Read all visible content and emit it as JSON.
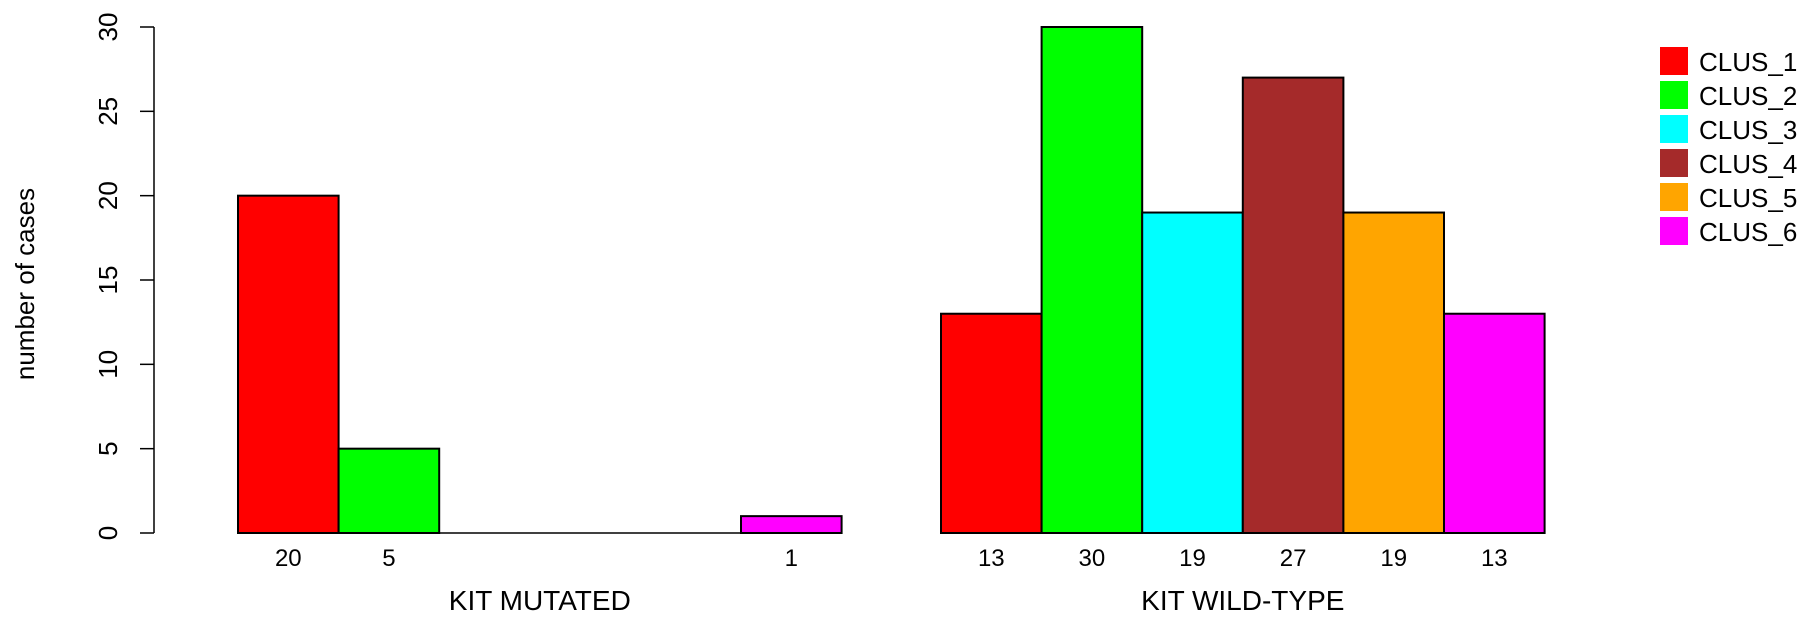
{
  "chart_data": {
    "type": "bar",
    "ylabel": "number of cases",
    "ylim": [
      0,
      30
    ],
    "yticks": [
      0,
      5,
      10,
      15,
      20,
      25,
      30
    ],
    "grid": false,
    "legend_position": "top-right",
    "groups": [
      {
        "label": "KIT MUTATED"
      },
      {
        "label": "KIT WILD-TYPE"
      }
    ],
    "series": [
      {
        "name": "CLUS_1",
        "color": "#ff0000",
        "values": [
          20,
          13
        ]
      },
      {
        "name": "CLUS_2",
        "color": "#00ff00",
        "values": [
          5,
          30
        ]
      },
      {
        "name": "CLUS_3",
        "color": "#00ffff",
        "values": [
          0,
          19
        ]
      },
      {
        "name": "CLUS_4",
        "color": "#a52a2a",
        "values": [
          0,
          27
        ]
      },
      {
        "name": "CLUS_5",
        "color": "#ffa500",
        "values": [
          0,
          19
        ]
      },
      {
        "name": "CLUS_6",
        "color": "#ff00ff",
        "values": [
          1,
          13
        ]
      }
    ]
  }
}
